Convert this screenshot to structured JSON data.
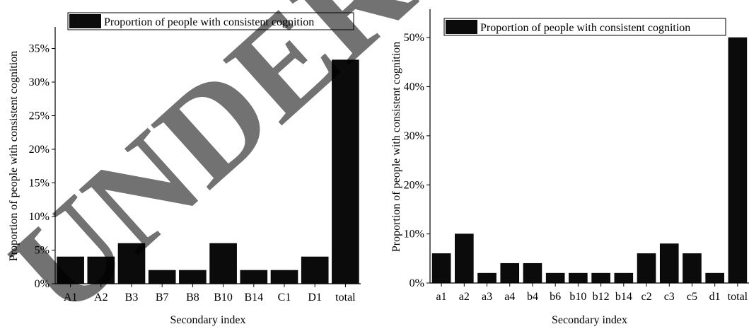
{
  "watermark": "UNDER PEER",
  "colors": {
    "bar": "#0b0b0b",
    "axis": "#000000",
    "background": "#ffffff",
    "watermark": "#dcdcdc"
  },
  "chart_data": [
    {
      "type": "bar",
      "legend": "Proportion of people with consistent cognition",
      "legend_position": "top",
      "xlabel": "Secondary index",
      "ylabel": "Proportion of people with consistent cognition",
      "categories": [
        "A1",
        "A2",
        "B3",
        "B7",
        "B8",
        "B10",
        "B14",
        "C1",
        "D1",
        "total"
      ],
      "values": [
        4,
        4,
        6,
        2,
        2,
        6,
        2,
        2,
        4,
        33.3
      ],
      "ylim": [
        0,
        38
      ],
      "yticks": [
        0,
        5,
        10,
        15,
        20,
        25,
        30,
        35
      ],
      "ytick_labels": [
        "0%",
        "5%",
        "10%",
        "15%",
        "20%",
        "25%",
        "30%",
        "35%"
      ],
      "grid": false
    },
    {
      "type": "bar",
      "legend": "Proportion of people with consistent cognition",
      "legend_position": "top",
      "xlabel": "Secondary index",
      "ylabel": "Proportion of people with consistent cognition",
      "categories": [
        "a1",
        "a2",
        "a3",
        "a4",
        "b4",
        "b6",
        "b10",
        "b12",
        "b14",
        "c2",
        "c3",
        "c5",
        "d1",
        "total"
      ],
      "values": [
        6,
        10,
        2,
        4,
        4,
        2,
        2,
        2,
        2,
        6,
        8,
        6,
        2,
        50
      ],
      "ylim": [
        0,
        55.5
      ],
      "yticks": [
        0,
        10,
        20,
        30,
        40,
        50
      ],
      "ytick_labels": [
        "0%",
        "10%",
        "20%",
        "30%",
        "40%",
        "50%"
      ],
      "grid": false
    }
  ]
}
